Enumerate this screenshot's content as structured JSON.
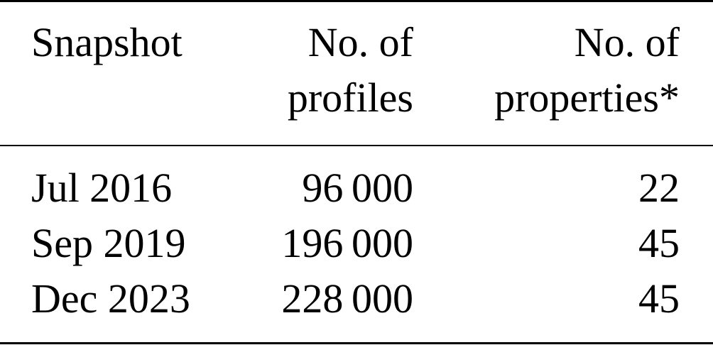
{
  "table": {
    "headers": [
      [
        "Snapshot"
      ],
      [
        "No. of",
        "profiles"
      ],
      [
        "No. of",
        "properties*"
      ]
    ],
    "rows": [
      [
        "Jul 2016",
        "96 000",
        "22"
      ],
      [
        "Sep 2019",
        "196 000",
        "45"
      ],
      [
        "Dec 2023",
        "228 000",
        "45"
      ]
    ]
  }
}
